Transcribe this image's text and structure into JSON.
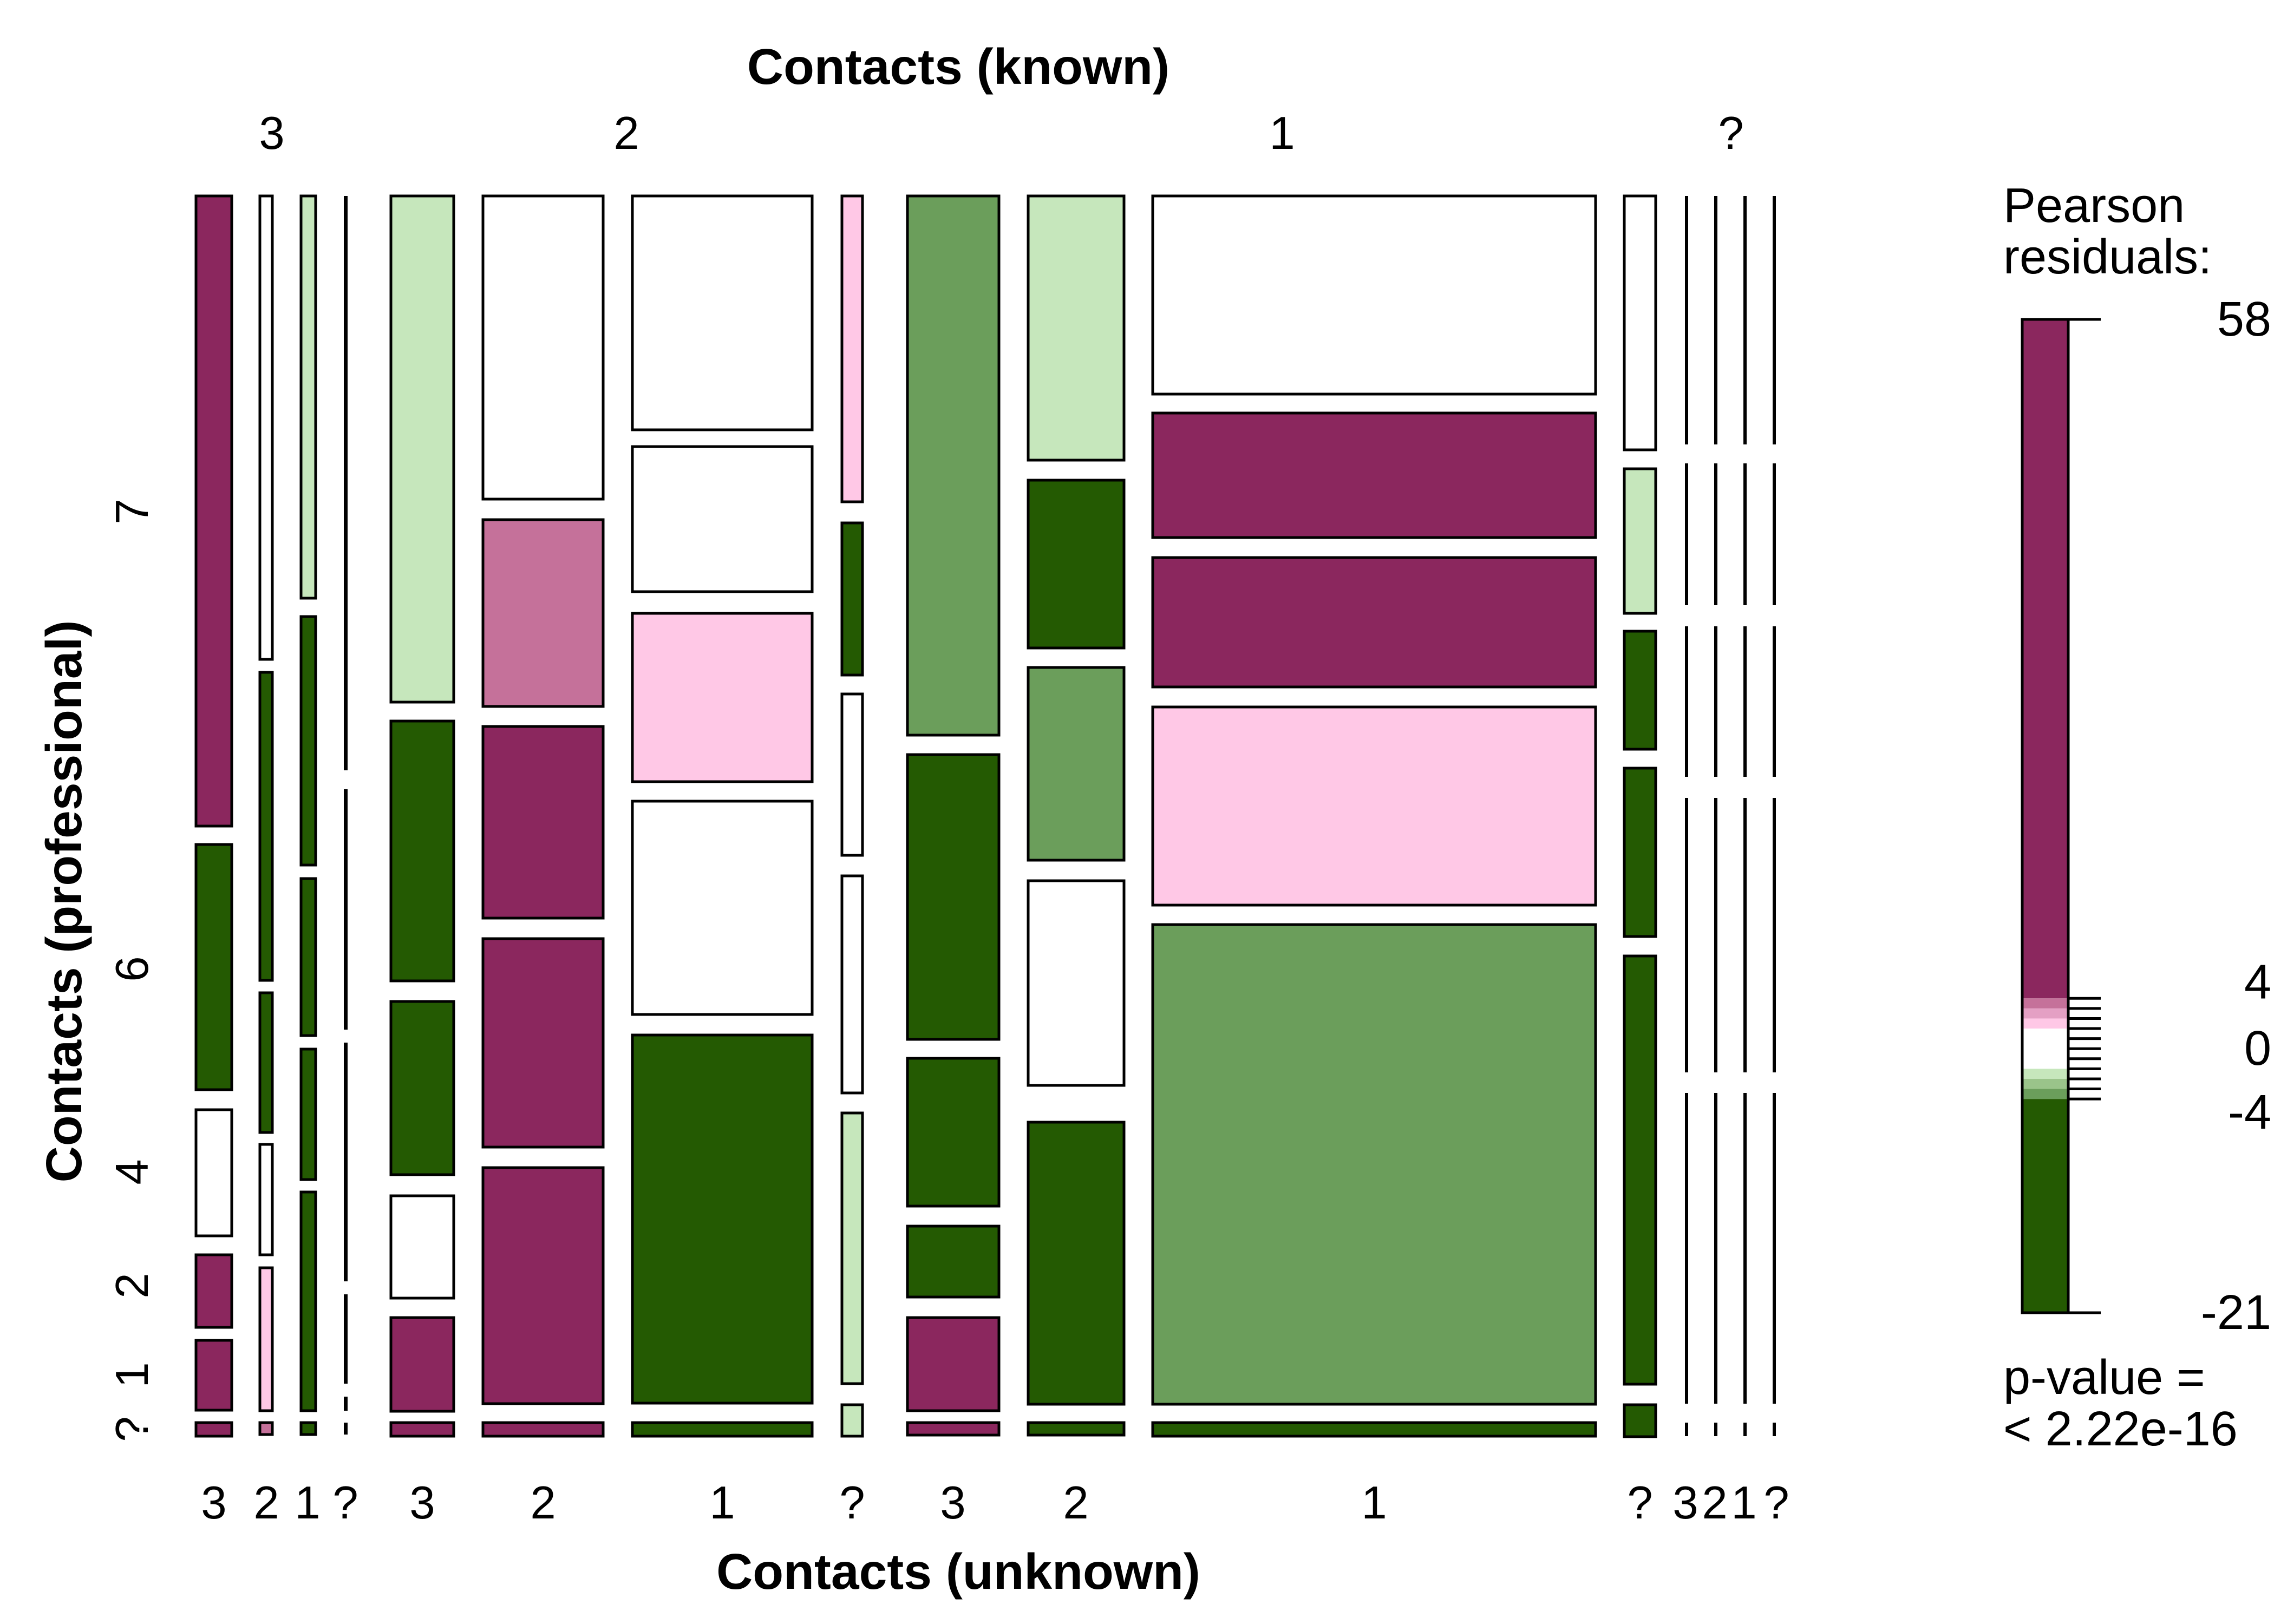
{
  "chart_data": {
    "type": "mosaic",
    "title": "",
    "top_axis": {
      "label": "Contacts (known)",
      "levels": [
        "3",
        "2",
        "1",
        "?"
      ]
    },
    "bottom_axis": {
      "label": "Contacts (unknown)",
      "groups": [
        {
          "known": "3",
          "levels": [
            "3",
            "2",
            "1",
            "?"
          ]
        },
        {
          "known": "2",
          "levels": [
            "3",
            "2",
            "1",
            "?"
          ]
        },
        {
          "known": "1",
          "levels": [
            "3",
            "2",
            "1",
            "?"
          ]
        },
        {
          "known": "?",
          "levels": [
            "3",
            "2",
            "1",
            "?"
          ]
        }
      ]
    },
    "left_axis": {
      "label": "Contacts (professional)",
      "tick_labels": [
        "?",
        "1",
        "2",
        "4",
        "6",
        "7"
      ]
    },
    "colors": {
      "strong_positive": "#8b275e",
      "medium_positive": "#c5719a",
      "weak_positive": "#ffc8e6",
      "neutral": "#ffffff",
      "weak_negative": "#c6e7bc",
      "medium_negative": "#6b9e5b",
      "strong_negative": "#245a02"
    },
    "residual_classes": [
      "+++",
      "++",
      "+",
      "0",
      "-",
      "--",
      "---"
    ],
    "cells": [
      {
        "known": "3",
        "unknown": "3",
        "classes": [
          "+++",
          "+++",
          "+++",
          "0",
          "---",
          "+++"
        ]
      },
      {
        "known": "3",
        "unknown": "2",
        "classes": [
          "++",
          "+",
          "0",
          "---",
          "---",
          "0"
        ]
      },
      {
        "known": "3",
        "unknown": "1",
        "classes": [
          "---",
          "---",
          "---",
          "---",
          "---",
          "-"
        ]
      },
      {
        "known": "3",
        "unknown": "?",
        "classes": [
          "---",
          "---",
          "---",
          "---",
          "---",
          "---"
        ]
      },
      {
        "known": "2",
        "unknown": "3",
        "classes": [
          "+++",
          "+++",
          "0",
          "---",
          "---",
          "-"
        ]
      },
      {
        "known": "2",
        "unknown": "2",
        "classes": [
          "+++",
          "+++",
          "+++",
          "+++",
          "++",
          "0"
        ]
      },
      {
        "known": "2",
        "unknown": "1",
        "classes": [
          "---",
          "---",
          "0",
          "+",
          "0",
          "0"
        ]
      },
      {
        "known": "2",
        "unknown": "?",
        "classes": [
          "-",
          "-",
          "0",
          "0",
          "---",
          "+"
        ]
      },
      {
        "known": "1",
        "unknown": "3",
        "classes": [
          "+++",
          "+++",
          "---",
          "---",
          "---",
          "--"
        ]
      },
      {
        "known": "1",
        "unknown": "2",
        "classes": [
          "---",
          "---",
          "0",
          "--",
          "---",
          "-"
        ]
      },
      {
        "known": "1",
        "unknown": "1",
        "classes": [
          "---",
          "--",
          "+",
          "+++",
          "+++",
          "0"
        ]
      },
      {
        "known": "1",
        "unknown": "?",
        "classes": [
          "---",
          "---",
          "---",
          "---",
          "-",
          "0"
        ]
      },
      {
        "known": "?",
        "unknown": "3",
        "classes": [
          "---",
          "---",
          "---",
          "---",
          "---",
          "---"
        ]
      },
      {
        "known": "?",
        "unknown": "2",
        "classes": [
          "---",
          "---",
          "---",
          "---",
          "---",
          "---"
        ]
      },
      {
        "known": "?",
        "unknown": "1",
        "classes": [
          "---",
          "---",
          "---",
          "---",
          "---",
          "---"
        ]
      },
      {
        "known": "?",
        "unknown": "?",
        "classes": [
          "---",
          "---",
          "---",
          "---",
          "---",
          "---"
        ]
      }
    ],
    "legend": {
      "title_line1": "Pearson",
      "title_line2": "residuals:",
      "max": 58,
      "min": -21,
      "tick_labels": [
        "58",
        "4",
        "0",
        "-4",
        "-21"
      ],
      "pvalue_line1": "p-value =",
      "pvalue_line2": "< 2.22e-16"
    }
  }
}
